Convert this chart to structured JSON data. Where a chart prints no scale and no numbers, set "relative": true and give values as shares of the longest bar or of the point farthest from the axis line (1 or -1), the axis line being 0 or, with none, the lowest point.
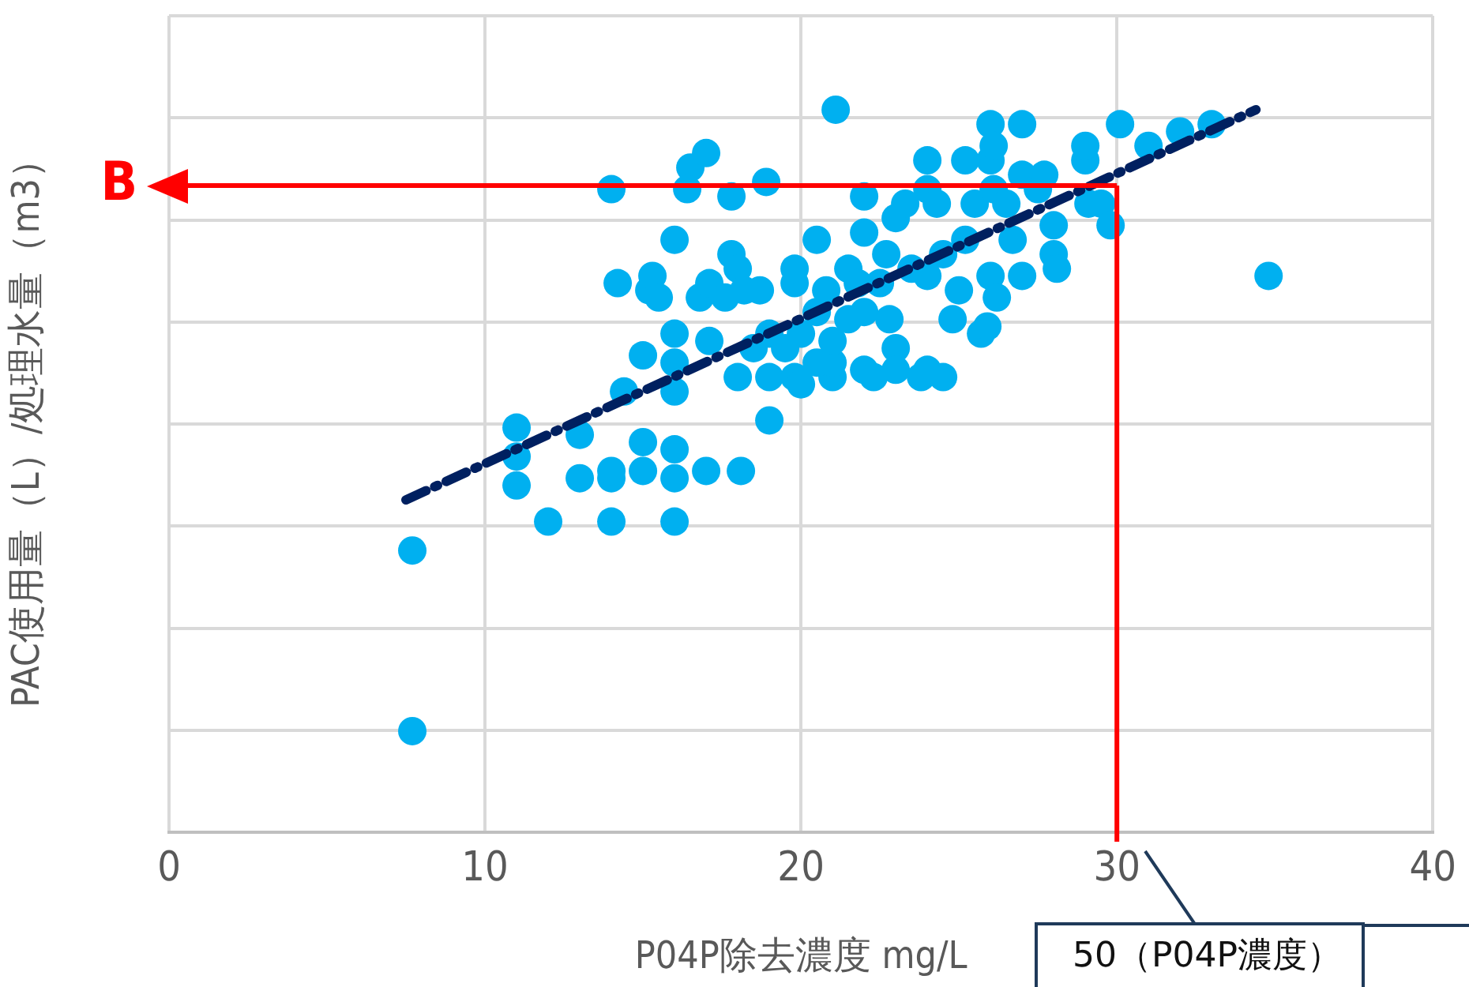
{
  "chart_data": {
    "type": "scatter",
    "xlabel": "P04P除去濃度 mg/L",
    "ylabel": "PAC使用量（L）/処理水量（m3）",
    "relative": true,
    "xlim": [
      0,
      40
    ],
    "xticks": [
      0,
      10,
      20,
      30,
      40
    ],
    "grid": true,
    "legend": false,
    "marker": "circle",
    "series": [
      {
        "color": "#00b0f0",
        "x": [
          7.7,
          7.7,
          11,
          11,
          11,
          12,
          13,
          13,
          14,
          14,
          14,
          14.2,
          14.4,
          14,
          15,
          15,
          15,
          15.2,
          15.3,
          15.5,
          16,
          16,
          16,
          16,
          16,
          16,
          16,
          16.5,
          16.4,
          17,
          16.8,
          17.1,
          17,
          17.1,
          17.6,
          17.8,
          17.8,
          18,
          18,
          18.1,
          18.2,
          18.9,
          18.7,
          19,
          19,
          19,
          19.8,
          19.8,
          19.8,
          20,
          20,
          20.5,
          20.5,
          20.8,
          21,
          21,
          21.1,
          21,
          21.5,
          21.8,
          22,
          22,
          22,
          22,
          22.3,
          22.5,
          22.7,
          22.8,
          23,
          23,
          23.3,
          23.5,
          23.8,
          24,
          24,
          24,
          24.3,
          24.5,
          24.5,
          24.8,
          25,
          25.2,
          25.5,
          25.7,
          26,
          26,
          26.1,
          26.1,
          26,
          26.2,
          25.9,
          26.5,
          26.7,
          27,
          27,
          27,
          27.5,
          27.7,
          28,
          28,
          28.1,
          29,
          29,
          29.1,
          29.5,
          29.8,
          30.1,
          31,
          32,
          33,
          34.8,
          24,
          23,
          21.5,
          20.5,
          19.5,
          18.5,
          25.2
        ],
        "values": [
          0.39,
          0.14,
          0.56,
          0.52,
          0.48,
          0.43,
          0.49,
          0.55,
          0.43,
          0.49,
          0.5,
          0.76,
          0.61,
          0.89,
          0.54,
          0.5,
          0.66,
          0.75,
          0.77,
          0.74,
          0.82,
          0.69,
          0.65,
          0.61,
          0.53,
          0.49,
          0.43,
          0.92,
          0.89,
          0.94,
          0.74,
          0.76,
          0.5,
          0.68,
          0.74,
          0.8,
          0.88,
          0.78,
          0.63,
          0.5,
          0.75,
          0.9,
          0.75,
          0.57,
          0.63,
          0.69,
          0.63,
          0.76,
          0.78,
          0.69,
          0.62,
          0.82,
          0.72,
          0.75,
          0.63,
          0.65,
          1.0,
          0.68,
          0.78,
          0.76,
          0.88,
          0.83,
          0.72,
          0.64,
          0.63,
          0.76,
          0.8,
          0.71,
          0.67,
          0.85,
          0.87,
          0.78,
          0.63,
          0.93,
          0.89,
          0.77,
          0.87,
          0.8,
          0.63,
          0.71,
          0.75,
          0.82,
          0.87,
          0.69,
          0.93,
          0.98,
          0.95,
          0.89,
          0.77,
          0.74,
          0.7,
          0.87,
          0.82,
          0.98,
          0.91,
          0.77,
          0.89,
          0.91,
          0.84,
          0.8,
          0.78,
          0.93,
          0.95,
          0.87,
          0.87,
          0.84,
          0.98,
          0.95,
          0.97,
          0.98,
          0.77,
          0.64,
          0.64,
          0.71,
          0.65,
          0.67,
          0.67,
          0.93
        ]
      },
      {
        "type": "line",
        "color": "#002060",
        "line_style": "dashed",
        "marker": "none",
        "x": [
          7.5,
          34.4
        ],
        "values": [
          0.46,
          1.0
        ]
      }
    ],
    "ref_lines": [
      {
        "axis": "y",
        "value": 0.895,
        "label": "B",
        "color": "#ff0000"
      },
      {
        "axis": "x",
        "value": 30,
        "color": "#ff0000"
      }
    ],
    "annotations": [
      "50（P04P濃度）"
    ]
  }
}
